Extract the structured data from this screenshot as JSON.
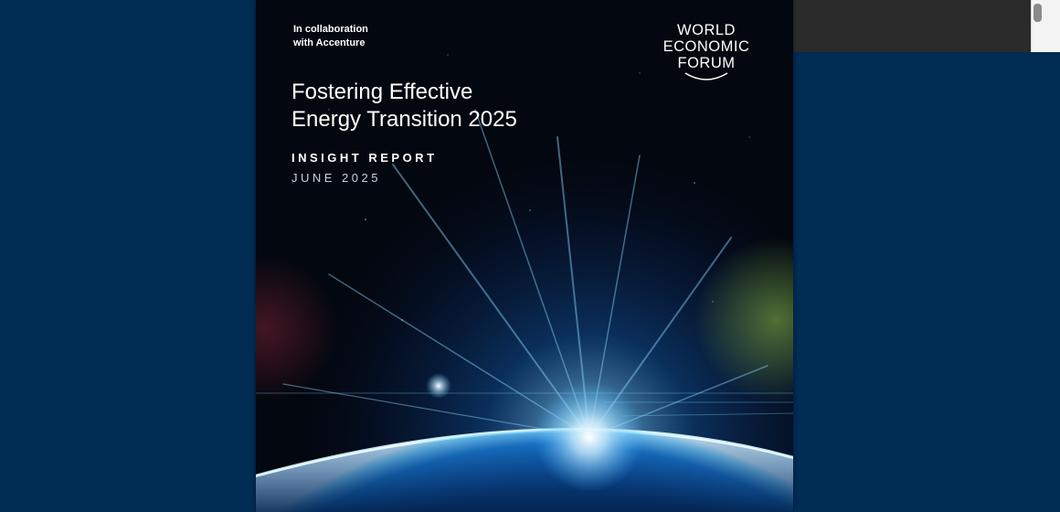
{
  "colors": {
    "viewer_background": "#012c54",
    "toolbar_dark": "#2b2b2b",
    "scrollbar_track": "#f3f3f3",
    "page_background": "#03070f",
    "glow_blue": "#3fb4ff",
    "text_white": "#ffffff"
  },
  "document": {
    "collaboration_line1": "In collaboration",
    "collaboration_line2": "with Accenture",
    "publisher_line1": "WORLD",
    "publisher_line2": "ECONOMIC",
    "publisher_line3": "FORUM",
    "title_line1": "Fostering Effective",
    "title_line2": "Energy Transition 2025",
    "report_type": "INSIGHT REPORT",
    "date": "JUNE 2025"
  },
  "cover_image": {
    "icon": "earth-sunrise-image"
  }
}
